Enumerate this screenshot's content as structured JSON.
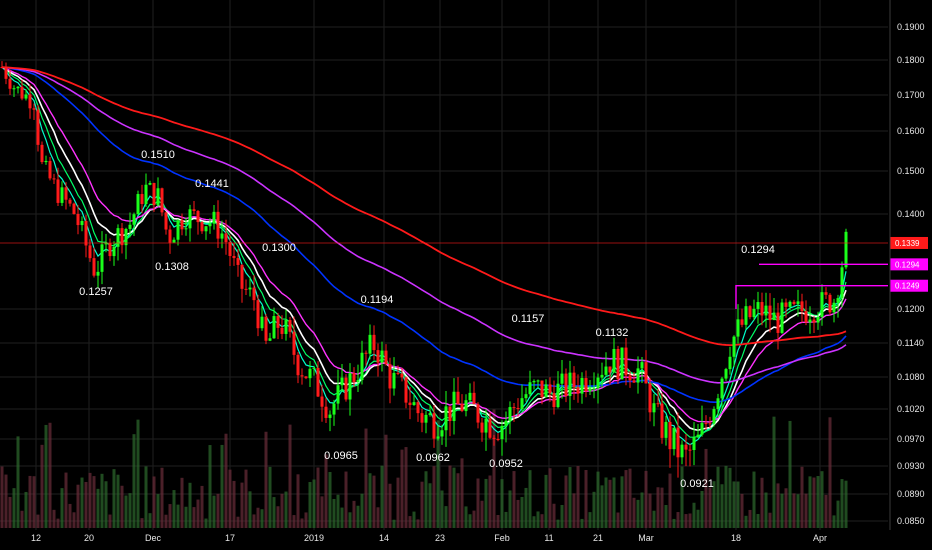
{
  "chart_data": {
    "type": "candlestick",
    "grid": true,
    "y_axis": {
      "position": "right",
      "ylim": [
        0.0845,
        0.194
      ],
      "tick_labels": [
        "0.1900",
        "0.1800",
        "0.1700",
        "0.1600",
        "0.1500",
        "0.1400",
        "0.1200",
        "0.1140",
        "0.1080",
        "0.1020",
        "0.0970",
        "0.0930",
        "0.0890",
        "0.0850"
      ]
    },
    "x_axis": {
      "tick_labels": [
        "12",
        "20",
        "Dec",
        "17",
        "2019",
        "14",
        "23",
        "Feb",
        "11",
        "21",
        "Mar",
        "18",
        "Apr"
      ]
    },
    "candles": [],
    "annotations": [
      "0.1510",
      "0.1441",
      "0.1257",
      "0.1308",
      "0.1300",
      "0.1194",
      "0.1157",
      "0.1132",
      "0.0965",
      "0.0962",
      "0.0952",
      "0.0921",
      "0.1294"
    ],
    "price_labels": [
      {
        "text": "0.1339",
        "value": 0.1339,
        "color": "#ff1a1a"
      },
      {
        "text": "0.1294",
        "value": 0.1294,
        "color": "#ff00ff"
      },
      {
        "text": "0.1249",
        "value": 0.1249,
        "color": "#ff00ff"
      }
    ],
    "horizontal_lines": [
      {
        "value": 0.1339,
        "color": "#ff1a1a"
      }
    ],
    "colors": {
      "up": "#1aff1a",
      "down": "#ff1a1a",
      "background": "#000000",
      "grid": "#1f1f1f"
    }
  }
}
